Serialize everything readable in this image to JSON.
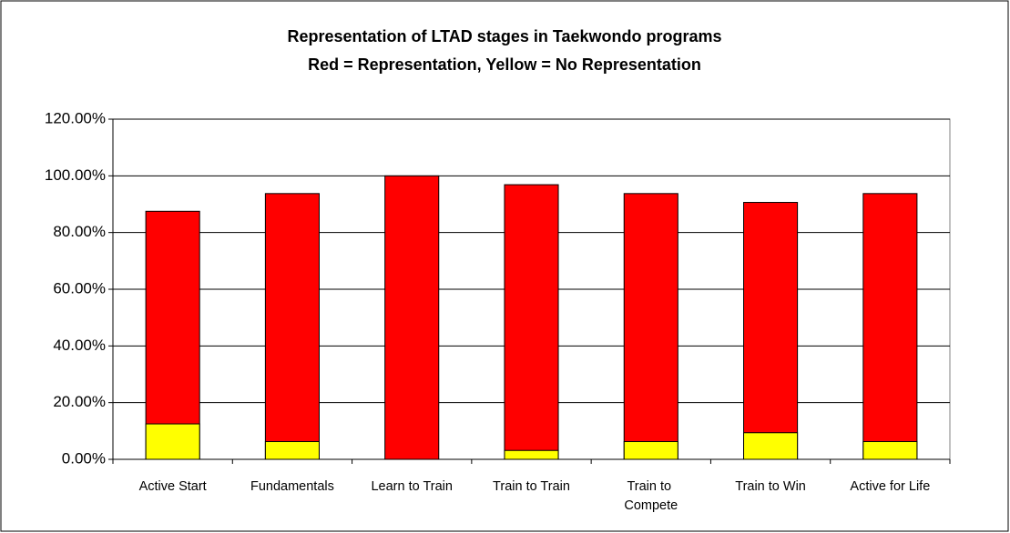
{
  "chart_data": {
    "type": "bar",
    "title": "Representation of LTAD stages in Taekwondo programs",
    "subtitle": "Red = Representation, Yellow = No Representation",
    "categories": [
      "Active Start",
      "Fundamentals",
      "Learn to Train",
      "Train to Train",
      "Train to Compete",
      "Train to Win",
      "Active for Life"
    ],
    "series": [
      {
        "color": "#ff0000",
        "values": [
          87.5,
          93.75,
          100,
          96.88,
          93.75,
          90.63,
          93.75
        ]
      },
      {
        "color": "#ffff00",
        "values": [
          12.5,
          6.25,
          0,
          3.13,
          6.25,
          9.38,
          6.25
        ]
      }
    ],
    "overlap": true,
    "ylim": [
      0,
      120
    ],
    "yticks": [
      {
        "value": 0,
        "label": "0.00%"
      },
      {
        "value": 20,
        "label": "20.00%"
      },
      {
        "value": 40,
        "label": "40.00%"
      },
      {
        "value": 60,
        "label": "60.00%"
      },
      {
        "value": 80,
        "label": "80.00%"
      },
      {
        "value": 100,
        "label": "100.00%"
      },
      {
        "value": 120,
        "label": "120.00%"
      }
    ],
    "grid": true
  }
}
